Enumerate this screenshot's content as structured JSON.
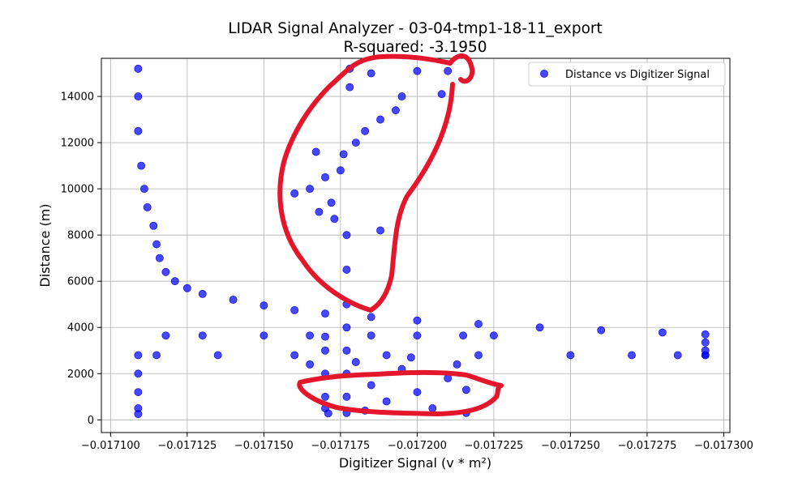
{
  "chart_data": {
    "type": "scatter",
    "title": "LIDAR Signal Analyzer - 03-04-tmp1-18-11_export",
    "subtitle": "R-squared: -3.1950",
    "xlabel": "Digitizer Signal (v * m²)",
    "ylabel": "Distance (m)",
    "xlim": [
      -0.017097,
      -0.017302
    ],
    "ylim": [
      -550,
      15650
    ],
    "x_ticks": [
      -0.0171,
      -0.017125,
      -0.01715,
      -0.017175,
      -0.0172,
      -0.017225,
      -0.01725,
      -0.017275,
      -0.0173
    ],
    "x_tick_labels": [
      "−0.017100",
      "−0.017125",
      "−0.017150",
      "−0.017175",
      "−0.017200",
      "−0.017225",
      "−0.017250",
      "−0.017275",
      "−0.017300"
    ],
    "y_ticks": [
      0,
      2000,
      4000,
      6000,
      8000,
      10000,
      12000,
      14000
    ],
    "y_tick_labels": [
      "0",
      "2000",
      "4000",
      "6000",
      "8000",
      "10000",
      "12000",
      "14000"
    ],
    "grid": true,
    "legend_position": "top-right",
    "series": [
      {
        "name": "Distance vs Digitizer Signal",
        "color": "#0000ff",
        "marker": "circle",
        "points": [
          [
            -0.017109,
            15200
          ],
          [
            -0.017109,
            14000
          ],
          [
            -0.017109,
            12500
          ],
          [
            -0.01711,
            11000
          ],
          [
            -0.017111,
            10000
          ],
          [
            -0.017112,
            9200
          ],
          [
            -0.017114,
            8400
          ],
          [
            -0.017115,
            7600
          ],
          [
            -0.017116,
            7000
          ],
          [
            -0.017118,
            6400
          ],
          [
            -0.017121,
            6000
          ],
          [
            -0.017125,
            5700
          ],
          [
            -0.01713,
            5450
          ],
          [
            -0.01714,
            5200
          ],
          [
            -0.01715,
            4950
          ],
          [
            -0.01716,
            4750
          ],
          [
            -0.01717,
            4600
          ],
          [
            -0.017185,
            4450
          ],
          [
            -0.0172,
            4300
          ],
          [
            -0.01722,
            4150
          ],
          [
            -0.01724,
            4000
          ],
          [
            -0.01726,
            3880
          ],
          [
            -0.01728,
            3780
          ],
          [
            -0.017294,
            3700
          ],
          [
            -0.017294,
            3350
          ],
          [
            -0.017294,
            3000
          ],
          [
            -0.017294,
            2800
          ],
          [
            -0.017109,
            2800
          ],
          [
            -0.017109,
            2000
          ],
          [
            -0.017109,
            1200
          ],
          [
            -0.017109,
            500
          ],
          [
            -0.017109,
            250
          ],
          [
            -0.017115,
            2800
          ],
          [
            -0.017135,
            2800
          ],
          [
            -0.01716,
            2800
          ],
          [
            -0.01719,
            2800
          ],
          [
            -0.01722,
            2800
          ],
          [
            -0.01725,
            2800
          ],
          [
            -0.01727,
            2800
          ],
          [
            -0.017285,
            2800
          ],
          [
            -0.017294,
            2800
          ],
          [
            -0.017118,
            3650
          ],
          [
            -0.01713,
            3650
          ],
          [
            -0.01715,
            3650
          ],
          [
            -0.017165,
            3650
          ],
          [
            -0.017185,
            3650
          ],
          [
            -0.0172,
            3650
          ],
          [
            -0.017215,
            3650
          ],
          [
            -0.017225,
            3650
          ],
          [
            -0.01717,
            3600
          ],
          [
            -0.01717,
            3000
          ],
          [
            -0.01717,
            2000
          ],
          [
            -0.01717,
            1000
          ],
          [
            -0.01717,
            500
          ],
          [
            -0.017177,
            8000
          ],
          [
            -0.017177,
            6500
          ],
          [
            -0.017177,
            5000
          ],
          [
            -0.017177,
            4000
          ],
          [
            -0.017177,
            3000
          ],
          [
            -0.017177,
            2000
          ],
          [
            -0.017177,
            1000
          ],
          [
            -0.017177,
            300
          ],
          [
            -0.01718,
            2500
          ],
          [
            -0.017185,
            1500
          ],
          [
            -0.01719,
            800
          ],
          [
            -0.017195,
            2200
          ],
          [
            -0.0172,
            1200
          ],
          [
            -0.017205,
            500
          ],
          [
            -0.01721,
            1800
          ],
          [
            -0.017213,
            2400
          ],
          [
            -0.017183,
            400
          ],
          [
            -0.017198,
            2700
          ],
          [
            -0.017216,
            1300
          ],
          [
            -0.017216,
            300
          ],
          [
            -0.017171,
            280
          ],
          [
            -0.017165,
            2400
          ],
          [
            -0.01716,
            9800
          ],
          [
            -0.017165,
            10000
          ],
          [
            -0.01717,
            10500
          ],
          [
            -0.017175,
            10800
          ],
          [
            -0.017172,
            9400
          ],
          [
            -0.017168,
            9000
          ],
          [
            -0.017173,
            8700
          ],
          [
            -0.017176,
            11500
          ],
          [
            -0.01718,
            12000
          ],
          [
            -0.017183,
            12500
          ],
          [
            -0.017188,
            13000
          ],
          [
            -0.017193,
            13400
          ],
          [
            -0.017195,
            14000
          ],
          [
            -0.017178,
            14400
          ],
          [
            -0.017185,
            15000
          ],
          [
            -0.0172,
            15100
          ],
          [
            -0.01721,
            15100
          ],
          [
            -0.017208,
            14100
          ],
          [
            -0.017188,
            8200
          ],
          [
            -0.017167,
            11600
          ],
          [
            -0.017178,
            15200
          ]
        ]
      }
    ]
  }
}
